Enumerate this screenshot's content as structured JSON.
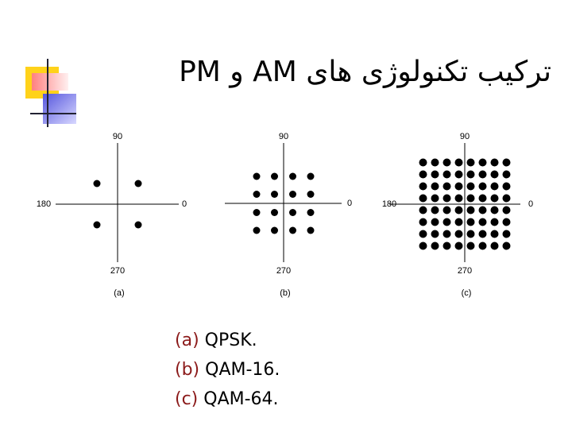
{
  "title": "ترکیب تکنولوژی های AM و PM",
  "diagrams": [
    {
      "labels": {
        "top": "90",
        "left": "180",
        "right": "0",
        "bottom": "270"
      },
      "caption": "(a)"
    },
    {
      "labels": {
        "top": "90",
        "right": "0",
        "bottom": "270"
      },
      "caption": "(b)"
    },
    {
      "labels": {
        "top": "90",
        "left": "180",
        "right": "0",
        "bottom": "270"
      },
      "caption": "(c)"
    }
  ],
  "list": [
    {
      "marker": "(a)",
      "text": "QPSK."
    },
    {
      "marker": "(b)",
      "text": "QAM-16."
    },
    {
      "marker": "(c)",
      "text": "QAM-64."
    }
  ]
}
